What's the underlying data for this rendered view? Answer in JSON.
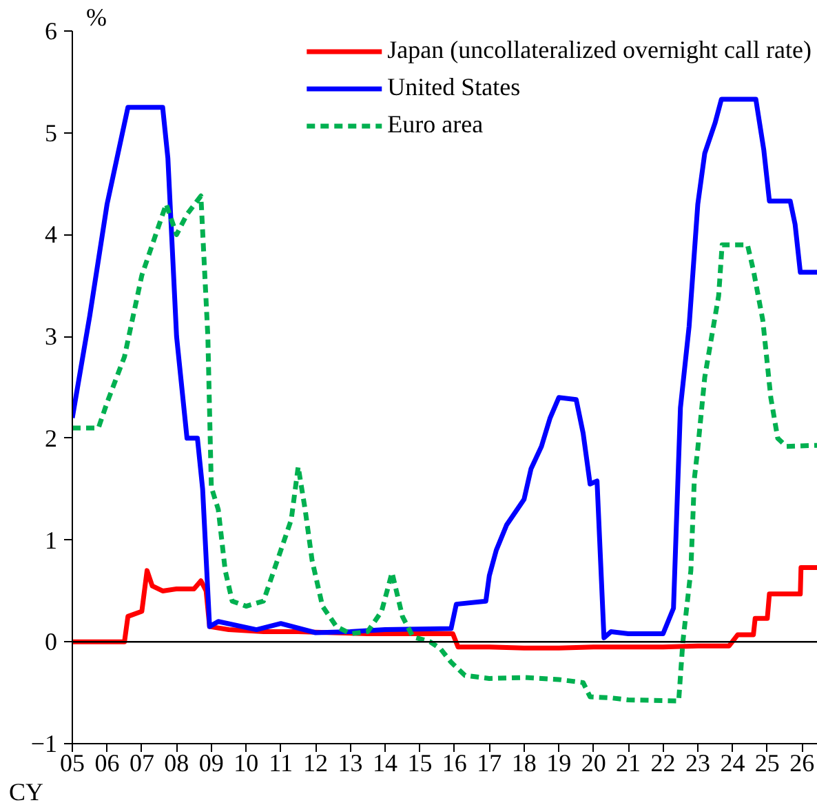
{
  "chart_data": {
    "type": "line",
    "xlabel": "CY",
    "ylabel": "%",
    "xlim": [
      2005,
      2026.45
    ],
    "ylim": [
      -1,
      6
    ],
    "xticks": [
      {
        "value": 2005,
        "label": "05"
      },
      {
        "value": 2006,
        "label": "06"
      },
      {
        "value": 2007,
        "label": "07"
      },
      {
        "value": 2008,
        "label": "08"
      },
      {
        "value": 2009,
        "label": "09"
      },
      {
        "value": 2010,
        "label": "10"
      },
      {
        "value": 2011,
        "label": "11"
      },
      {
        "value": 2012,
        "label": "12"
      },
      {
        "value": 2013,
        "label": "13"
      },
      {
        "value": 2014,
        "label": "14"
      },
      {
        "value": 2015,
        "label": "15"
      },
      {
        "value": 2016,
        "label": "16"
      },
      {
        "value": 2017,
        "label": "17"
      },
      {
        "value": 2018,
        "label": "18"
      },
      {
        "value": 2019,
        "label": "19"
      },
      {
        "value": 2020,
        "label": "20"
      },
      {
        "value": 2021,
        "label": "21"
      },
      {
        "value": 2022,
        "label": "22"
      },
      {
        "value": 2023,
        "label": "23"
      },
      {
        "value": 2024,
        "label": "24"
      },
      {
        "value": 2025,
        "label": "25"
      },
      {
        "value": 2026,
        "label": "26"
      }
    ],
    "yticks": [
      -1,
      0,
      1,
      2,
      3,
      4,
      5,
      6
    ],
    "grid": false,
    "legend": "top right",
    "marker": "none",
    "ref_lines": [
      {
        "axis": "y",
        "value": 0,
        "color": "#000000"
      }
    ],
    "series": [
      {
        "name": "Japan (uncollateralized overnight call rate)",
        "color": "#ff0000",
        "line_style": "solid",
        "x": [
          2005,
          2006.5,
          2006.6,
          2007.0,
          2007.15,
          2007.3,
          2007.6,
          2008.0,
          2008.5,
          2008.7,
          2008.85,
          2008.95,
          2009.5,
          2010.5,
          2011.5,
          2012.5,
          2013.5,
          2014.5,
          2015.5,
          2015.95,
          2016.1,
          2017.0,
          2018.0,
          2019.0,
          2020.0,
          2021.0,
          2022.0,
          2023.0,
          2023.9,
          2024.15,
          2024.6,
          2024.65,
          2025.0,
          2025.06,
          2025.95,
          2025.97,
          2026.45
        ],
        "values": [
          0,
          0,
          0.25,
          0.3,
          0.7,
          0.55,
          0.5,
          0.52,
          0.52,
          0.6,
          0.5,
          0.15,
          0.12,
          0.1,
          0.1,
          0.09,
          0.08,
          0.08,
          0.08,
          0.08,
          -0.05,
          -0.05,
          -0.06,
          -0.06,
          -0.05,
          -0.05,
          -0.05,
          -0.04,
          -0.04,
          0.07,
          0.07,
          0.23,
          0.23,
          0.47,
          0.47,
          0.73,
          0.73
        ]
      },
      {
        "name": "United States",
        "color": "#0000ff",
        "line_style": "solid",
        "x": [
          2005,
          2005.5,
          2006.0,
          2006.6,
          2007.6,
          2007.75,
          2008.0,
          2008.3,
          2008.6,
          2008.75,
          2008.95,
          2009.2,
          2010.3,
          2011.0,
          2012.0,
          2013.0,
          2014.0,
          2015.9,
          2016.05,
          2016.9,
          2017.0,
          2017.2,
          2017.5,
          2018.0,
          2018.2,
          2018.5,
          2018.75,
          2019.0,
          2019.5,
          2019.7,
          2019.9,
          2020.1,
          2020.3,
          2020.5,
          2021.0,
          2022.0,
          2022.3,
          2022.5,
          2022.75,
          2023.0,
          2023.2,
          2023.5,
          2023.68,
          2024.67,
          2024.9,
          2025.06,
          2025.66,
          2025.8,
          2025.95,
          2026.45
        ],
        "values": [
          2.2,
          3.2,
          4.3,
          5.25,
          5.25,
          4.75,
          3.0,
          2.0,
          2.0,
          1.5,
          0.15,
          0.2,
          0.12,
          0.18,
          0.09,
          0.1,
          0.12,
          0.13,
          0.37,
          0.4,
          0.65,
          0.9,
          1.15,
          1.4,
          1.7,
          1.92,
          2.2,
          2.4,
          2.38,
          2.05,
          1.55,
          1.58,
          0.04,
          0.1,
          0.08,
          0.08,
          0.33,
          2.3,
          3.1,
          4.3,
          4.8,
          5.1,
          5.33,
          5.33,
          4.83,
          4.33,
          4.33,
          4.1,
          3.63,
          3.63
        ]
      },
      {
        "name": "Euro area",
        "color": "#00b050",
        "line_style": "dashed",
        "x": [
          2005,
          2005.5,
          2005.75,
          2006.0,
          2006.5,
          2007.0,
          2007.3,
          2007.6,
          2007.7,
          2008.0,
          2008.3,
          2008.7,
          2008.9,
          2009.0,
          2009.2,
          2009.4,
          2009.6,
          2010.0,
          2010.5,
          2011.0,
          2011.3,
          2011.5,
          2011.7,
          2011.9,
          2012.2,
          2012.6,
          2013.0,
          2013.5,
          2013.9,
          2014.2,
          2014.5,
          2014.8,
          2015.3,
          2015.6,
          2015.9,
          2016.3,
          2017.0,
          2018.0,
          2019.0,
          2019.7,
          2019.9,
          2020.5,
          2021.0,
          2022.45,
          2022.57,
          2022.8,
          2022.9,
          2023.0,
          2023.2,
          2023.4,
          2023.6,
          2023.7,
          2024.43,
          2024.6,
          2024.87,
          2025.1,
          2025.3,
          2025.55,
          2026.45
        ],
        "values": [
          2.1,
          2.1,
          2.1,
          2.35,
          2.8,
          3.6,
          3.9,
          4.2,
          4.3,
          4.0,
          4.2,
          4.38,
          3.0,
          1.52,
          1.3,
          0.7,
          0.4,
          0.35,
          0.4,
          0.9,
          1.2,
          1.72,
          1.3,
          0.8,
          0.35,
          0.15,
          0.08,
          0.1,
          0.3,
          0.68,
          0.25,
          0.05,
          0.0,
          -0.07,
          -0.2,
          -0.33,
          -0.36,
          -0.35,
          -0.37,
          -0.4,
          -0.54,
          -0.55,
          -0.57,
          -0.58,
          0.0,
          0.7,
          1.6,
          1.9,
          2.6,
          3.0,
          3.4,
          3.9,
          3.9,
          3.65,
          3.16,
          2.4,
          2.0,
          1.92,
          1.93
        ]
      }
    ]
  }
}
